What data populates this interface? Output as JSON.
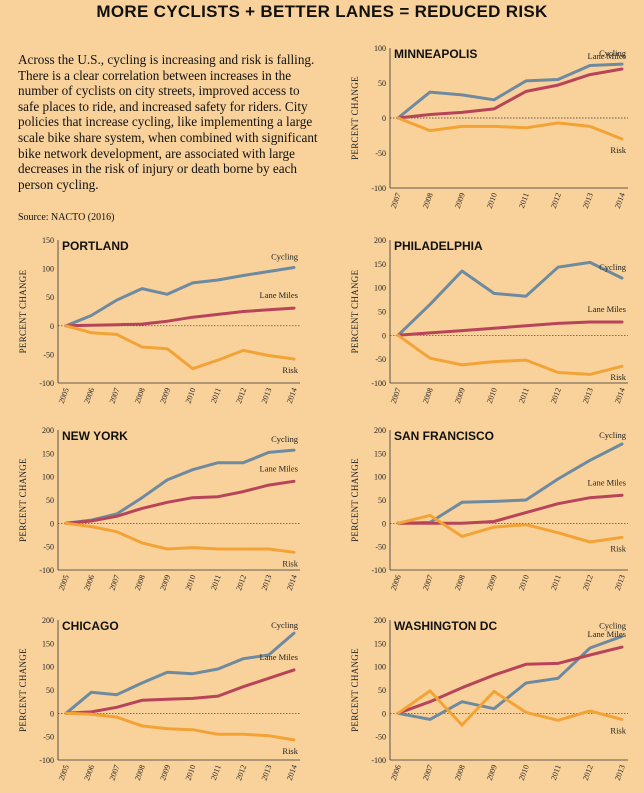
{
  "header": {
    "title": "MORE CYCLISTS + BETTER LANES = REDUCED RISK",
    "intro": "Across the U.S., cycling is increasing and risk is falling. There is a clear correlation between increases in the number of cyclists on city streets, improved access to safe places to ride, and increased safety for riders. City policies that increase cycling, like implementing a large scale bike share system, when combined with significant bike network development, are associated with large decreases in the risk of injury or death borne by each person cycling.",
    "source": "Source: NACTO (2016)"
  },
  "colors": {
    "background": "#f9d29b",
    "cycling": "#6d8aa0",
    "lane_miles": "#b8445a",
    "risk": "#f3a336"
  },
  "chart_data": [
    {
      "type": "line",
      "title": "MINNEAPOLIS",
      "ylabel": "PERCENT CHANGE",
      "ylim": [
        -100,
        100
      ],
      "yticks": [
        100,
        50,
        0,
        -50,
        -100
      ],
      "categories": [
        "2007",
        "2008",
        "2009",
        "2010",
        "2011",
        "2012",
        "2013",
        "2014"
      ],
      "series": [
        {
          "name": "Cycling",
          "values": [
            0,
            37,
            33,
            26,
            53,
            55,
            75,
            77
          ]
        },
        {
          "name": "Lane Miles",
          "values": [
            0,
            5,
            8,
            13,
            38,
            47,
            62,
            70
          ]
        },
        {
          "name": "Risk",
          "values": [
            0,
            -18,
            -12,
            -12,
            -14,
            -7,
            -12,
            -30
          ]
        }
      ]
    },
    {
      "type": "line",
      "title": "PORTLAND",
      "ylabel": "PERCENT CHANGE",
      "ylim": [
        -100,
        150
      ],
      "yticks": [
        150,
        100,
        50,
        0,
        -50,
        -100
      ],
      "categories": [
        "2005",
        "2006",
        "2007",
        "2008",
        "2009",
        "2010",
        "2011",
        "2012",
        "2013",
        "2014"
      ],
      "series": [
        {
          "name": "Cycling",
          "values": [
            0,
            18,
            45,
            65,
            55,
            75,
            80,
            88,
            95,
            102
          ]
        },
        {
          "name": "Lane Miles",
          "values": [
            0,
            1,
            2,
            3,
            8,
            15,
            20,
            25,
            28,
            31
          ]
        },
        {
          "name": "Risk",
          "values": [
            0,
            -12,
            -15,
            -37,
            -40,
            -75,
            -60,
            -43,
            -52,
            -58
          ]
        }
      ]
    },
    {
      "type": "line",
      "title": "PHILADELPHIA",
      "ylabel": "PERCENT CHANGE",
      "ylim": [
        -100,
        200
      ],
      "yticks": [
        200,
        150,
        100,
        50,
        0,
        -50,
        -100
      ],
      "categories": [
        "2007",
        "2008",
        "2009",
        "2010",
        "2011",
        "2012",
        "2013",
        "2014"
      ],
      "series": [
        {
          "name": "Cycling",
          "values": [
            0,
            65,
            135,
            88,
            82,
            143,
            153,
            120
          ]
        },
        {
          "name": "Lane Miles",
          "values": [
            0,
            5,
            10,
            15,
            20,
            25,
            28,
            28
          ]
        },
        {
          "name": "Risk",
          "values": [
            0,
            -48,
            -62,
            -55,
            -52,
            -78,
            -82,
            -65
          ]
        }
      ]
    },
    {
      "type": "line",
      "title": "NEW YORK",
      "ylabel": "PERCENT CHANGE",
      "ylim": [
        -100,
        200
      ],
      "yticks": [
        200,
        150,
        100,
        50,
        0,
        -50,
        -100
      ],
      "categories": [
        "2005",
        "2006",
        "2007",
        "2008",
        "2009",
        "2010",
        "2011",
        "2012",
        "2013",
        "2014"
      ],
      "series": [
        {
          "name": "Cycling",
          "values": [
            0,
            7,
            20,
            55,
            93,
            115,
            130,
            130,
            152,
            157
          ]
        },
        {
          "name": "Lane Miles",
          "values": [
            0,
            5,
            15,
            32,
            45,
            55,
            57,
            68,
            82,
            90
          ]
        },
        {
          "name": "Risk",
          "values": [
            0,
            -7,
            -18,
            -42,
            -55,
            -52,
            -55,
            -55,
            -55,
            -62
          ]
        }
      ]
    },
    {
      "type": "line",
      "title": "SAN FRANCISCO",
      "ylabel": "PERCENT CHANGE",
      "ylim": [
        -100,
        200
      ],
      "yticks": [
        200,
        150,
        100,
        50,
        0,
        -50,
        -100
      ],
      "categories": [
        "2006",
        "2007",
        "2008",
        "2009",
        "2010",
        "2011",
        "2012",
        "2013"
      ],
      "series": [
        {
          "name": "Cycling",
          "values": [
            0,
            2,
            45,
            47,
            50,
            95,
            135,
            170
          ]
        },
        {
          "name": "Lane Miles",
          "values": [
            0,
            0,
            0,
            4,
            23,
            42,
            55,
            60
          ]
        },
        {
          "name": "Risk",
          "values": [
            0,
            17,
            -28,
            -8,
            -3,
            -20,
            -40,
            -30
          ]
        }
      ]
    },
    {
      "type": "line",
      "title": "CHICAGO",
      "ylabel": "PERCENT CHANGE",
      "ylim": [
        -100,
        200
      ],
      "yticks": [
        200,
        150,
        100,
        50,
        0,
        -50,
        -100
      ],
      "categories": [
        "2005",
        "2006",
        "2007",
        "2008",
        "2009",
        "2010",
        "2011",
        "2012",
        "2013",
        "2014"
      ],
      "series": [
        {
          "name": "Cycling",
          "values": [
            0,
            45,
            40,
            65,
            88,
            85,
            95,
            117,
            125,
            172
          ]
        },
        {
          "name": "Lane Miles",
          "values": [
            0,
            3,
            13,
            28,
            30,
            32,
            37,
            57,
            75,
            93
          ]
        },
        {
          "name": "Risk",
          "values": [
            0,
            -2,
            -8,
            -27,
            -33,
            -35,
            -45,
            -45,
            -48,
            -57
          ]
        }
      ]
    },
    {
      "type": "line",
      "title": "WASHINGTON DC",
      "ylabel": "PERCENT CHANGE",
      "ylim": [
        -100,
        200
      ],
      "yticks": [
        200,
        150,
        100,
        50,
        0,
        -50,
        -100
      ],
      "categories": [
        "2006",
        "2007",
        "2008",
        "2009",
        "2010",
        "2011",
        "2012",
        "2013"
      ],
      "series": [
        {
          "name": "Cycling",
          "values": [
            0,
            -13,
            25,
            10,
            65,
            75,
            140,
            165
          ]
        },
        {
          "name": "Lane Miles",
          "values": [
            0,
            25,
            55,
            82,
            105,
            107,
            125,
            142
          ]
        },
        {
          "name": "Risk",
          "values": [
            0,
            48,
            -25,
            47,
            2,
            -15,
            5,
            -13
          ]
        }
      ]
    }
  ]
}
